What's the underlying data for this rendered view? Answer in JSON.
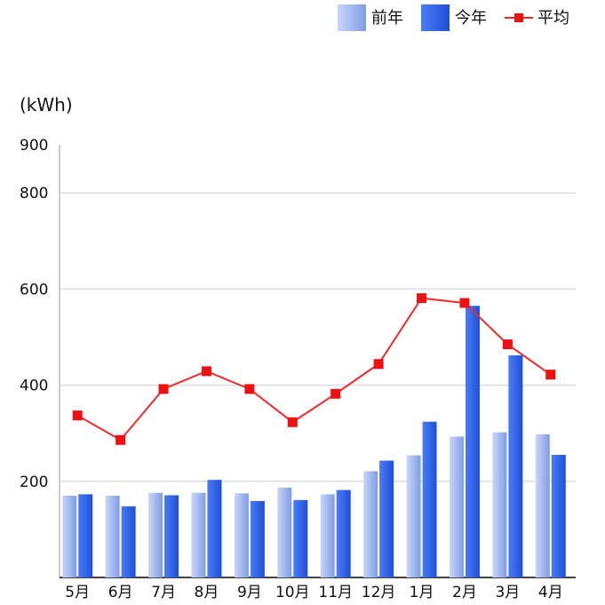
{
  "chart_data": {
    "type": "bar",
    "ylabel": "(kWh)",
    "ylim": [
      0,
      900
    ],
    "yticks": [
      200,
      400,
      600,
      800,
      900
    ],
    "grid": true,
    "legend_position": "top-right",
    "categories": [
      "5月",
      "6月",
      "7月",
      "8月",
      "9月",
      "10月",
      "11月",
      "12月",
      "1月",
      "2月",
      "3月",
      "4月"
    ],
    "series": [
      {
        "name": "前年",
        "kind": "bar",
        "color": "#9db3ee",
        "values": [
          170,
          170,
          176,
          176,
          175,
          187,
          173,
          221,
          254,
          293,
          302,
          298
        ]
      },
      {
        "name": "今年",
        "kind": "bar",
        "color": "#2f5fe8",
        "values": [
          173,
          148,
          171,
          203,
          159,
          161,
          182,
          243,
          324,
          565,
          462,
          255
        ]
      },
      {
        "name": "平均",
        "kind": "line",
        "color": "#ee2a2a",
        "values": [
          337,
          286,
          392,
          429,
          392,
          323,
          382,
          444,
          581,
          571,
          485,
          422
        ]
      }
    ]
  }
}
